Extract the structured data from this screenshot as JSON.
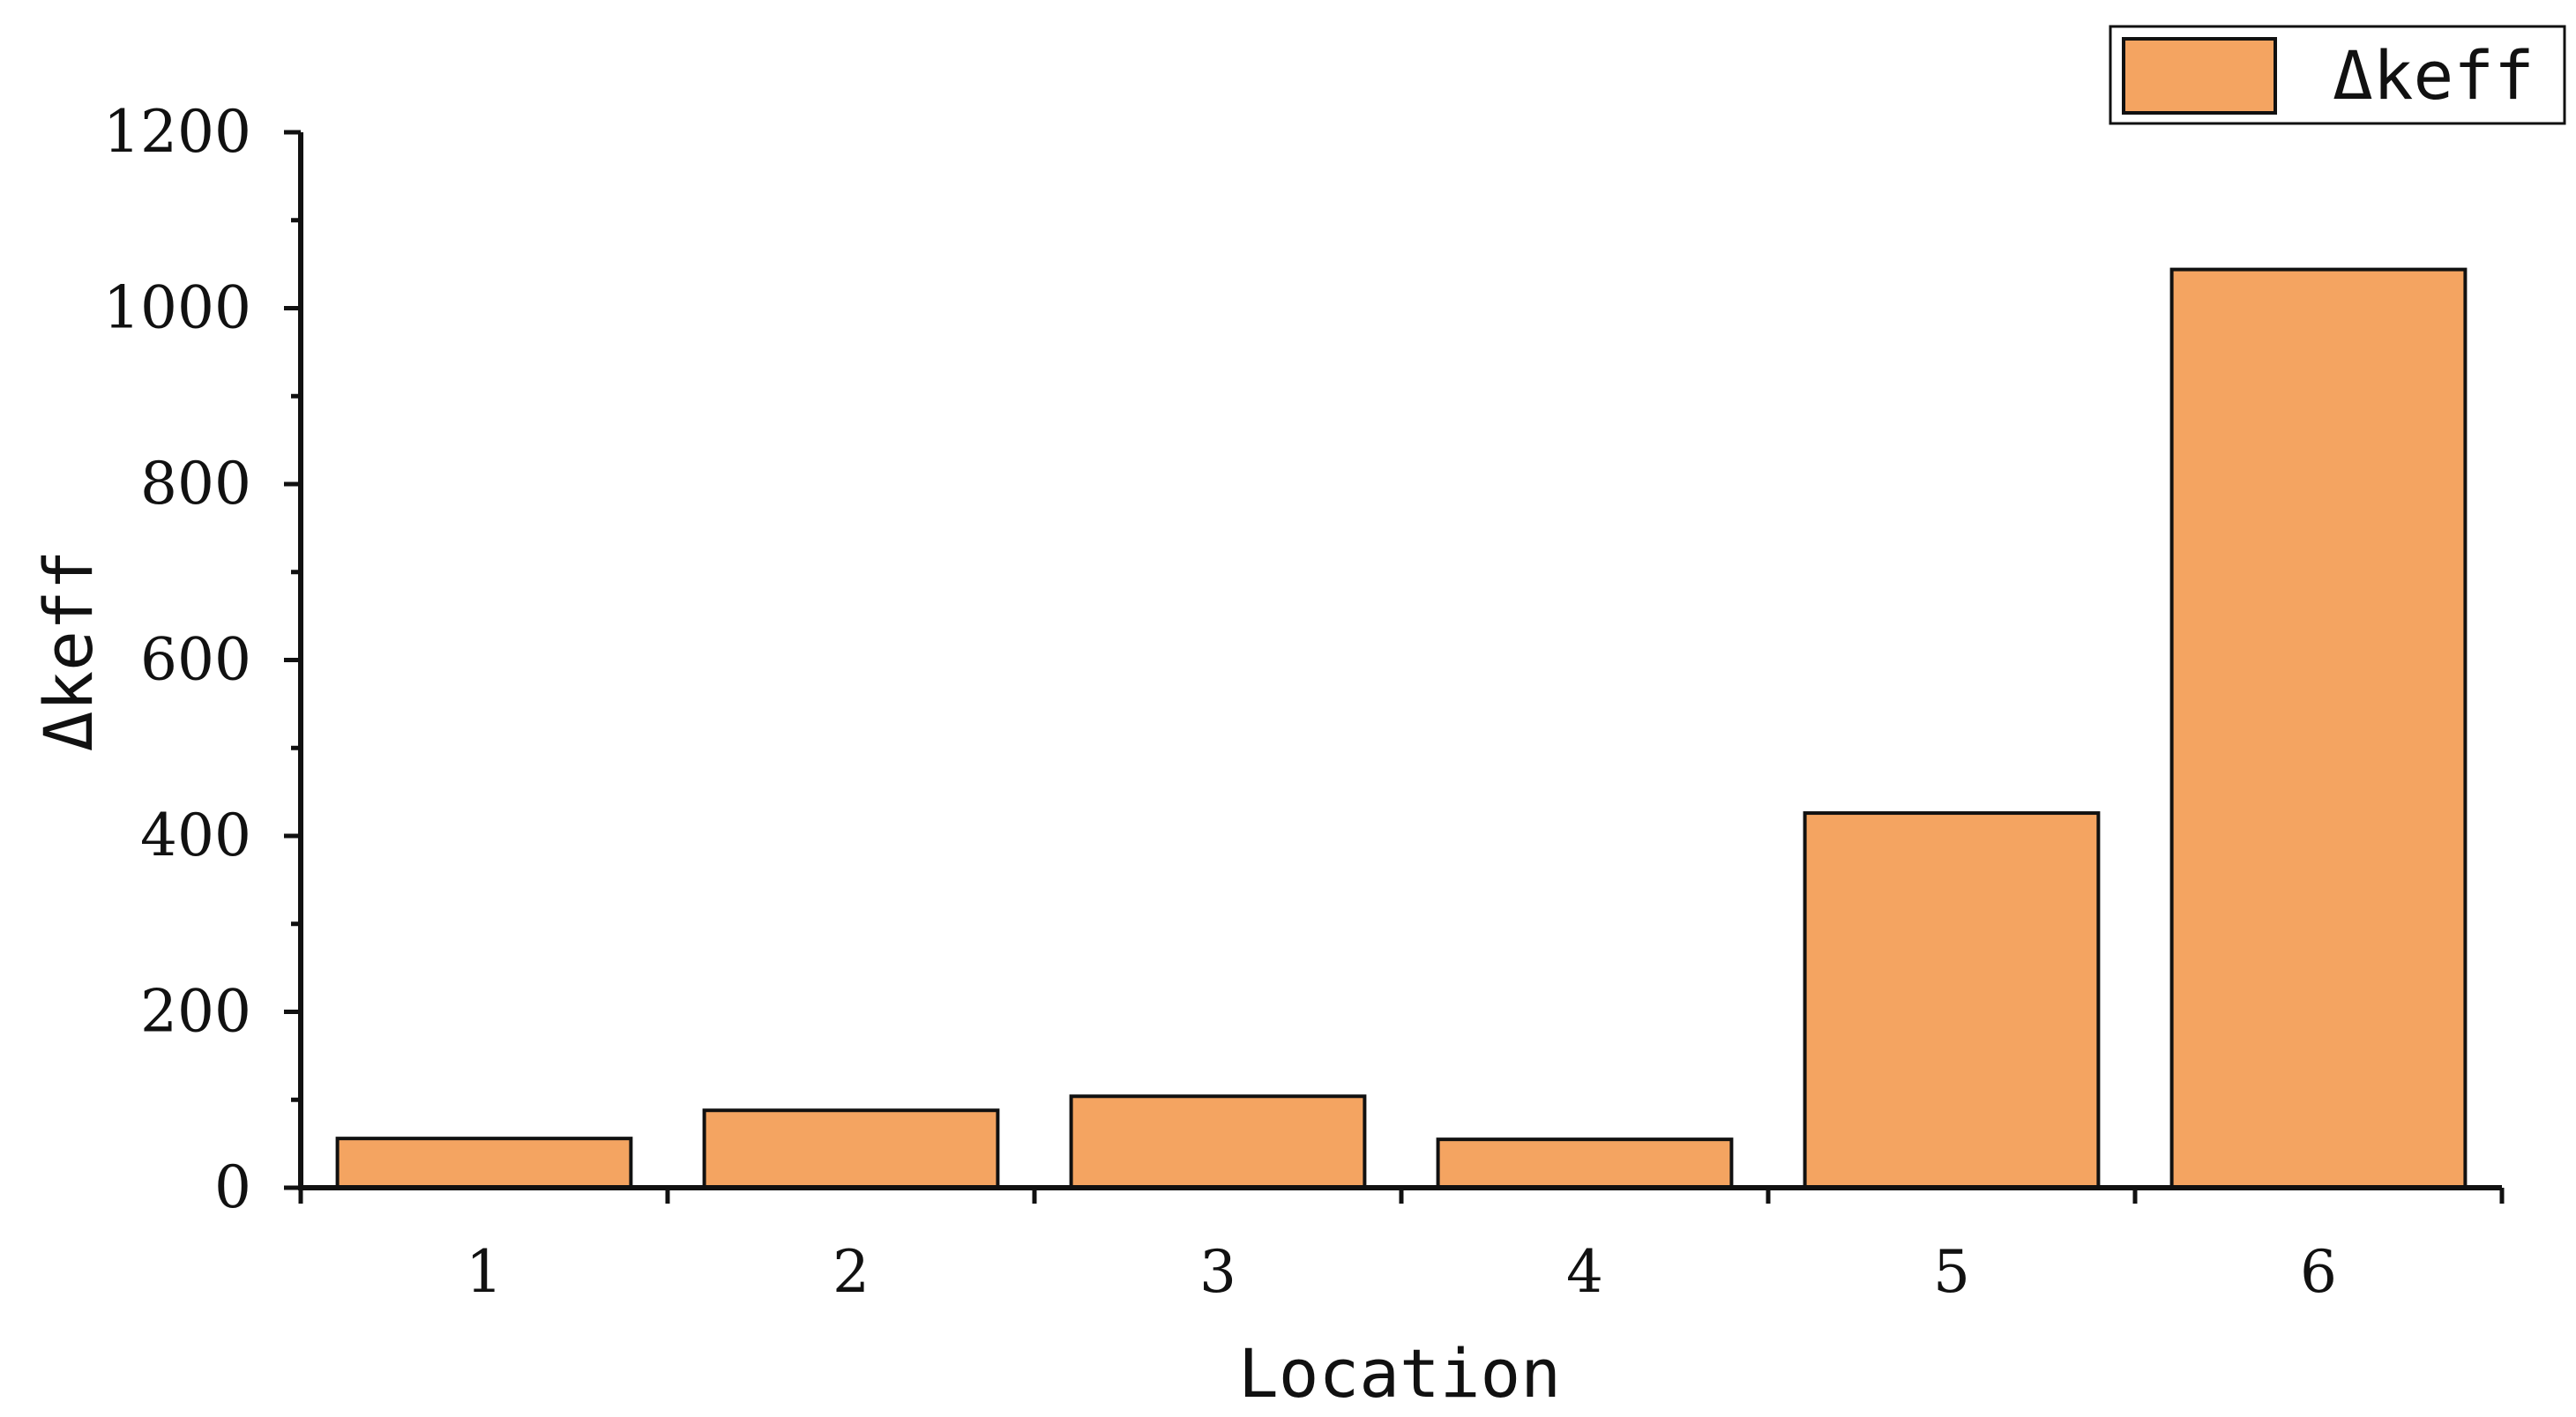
{
  "chart_data": {
    "type": "bar",
    "categories": [
      "1",
      "2",
      "3",
      "4",
      "5",
      "6"
    ],
    "series": [
      {
        "name": "Δkeff",
        "values": [
          56,
          88,
          104,
          55,
          426,
          1044
        ]
      }
    ],
    "title": "",
    "xlabel": "Location",
    "ylabel": "Δkeff",
    "ylim": [
      0,
      1200
    ],
    "yticks": [
      "0",
      "200",
      "400",
      "600",
      "800",
      "1000",
      "1200"
    ],
    "grid": false,
    "legend_position": "top-right",
    "bar_color": "#f4a461",
    "bar_edge_color": "#111111"
  }
}
